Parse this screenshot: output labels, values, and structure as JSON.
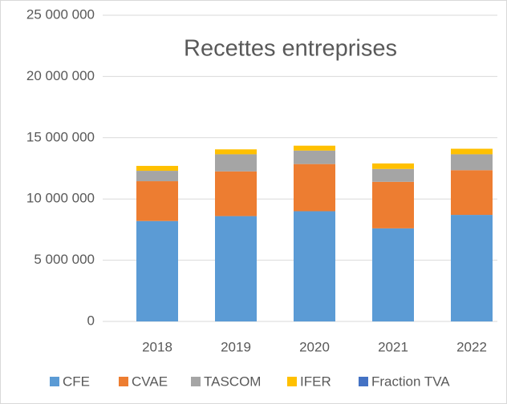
{
  "chart_data": {
    "type": "stacked_bar",
    "title": "Recettes entreprises",
    "categories": [
      "2018",
      "2019",
      "2020",
      "2021",
      "2022"
    ],
    "series": [
      {
        "name": "CFE",
        "color": "#5b9bd5",
        "values": [
          8200000,
          8600000,
          9000000,
          7600000,
          8700000
        ]
      },
      {
        "name": "CVAE",
        "color": "#ed7d31",
        "values": [
          3250000,
          3650000,
          3850000,
          3800000,
          3650000
        ]
      },
      {
        "name": "TASCOM",
        "color": "#a5a5a5",
        "values": [
          850000,
          1400000,
          1100000,
          1050000,
          1300000
        ]
      },
      {
        "name": "IFER",
        "color": "#ffc000",
        "values": [
          400000,
          400000,
          400000,
          450000,
          450000
        ]
      },
      {
        "name": "Fraction TVA",
        "color": "#4472c4",
        "values": [
          0,
          0,
          0,
          0,
          0
        ]
      }
    ],
    "ylim": [
      0,
      25000000
    ],
    "yticks": [
      0,
      {
        "value": 5000000,
        "label": "5 000 000"
      },
      {
        "value": 10000000,
        "label": "10 000 000"
      },
      {
        "value": 15000000,
        "label": "15 000 000"
      },
      {
        "value": 20000000,
        "label": "20 000 000"
      },
      {
        "value": 25000000,
        "label": "25 000 000"
      }
    ],
    "grid": true,
    "legend": "bottom"
  }
}
